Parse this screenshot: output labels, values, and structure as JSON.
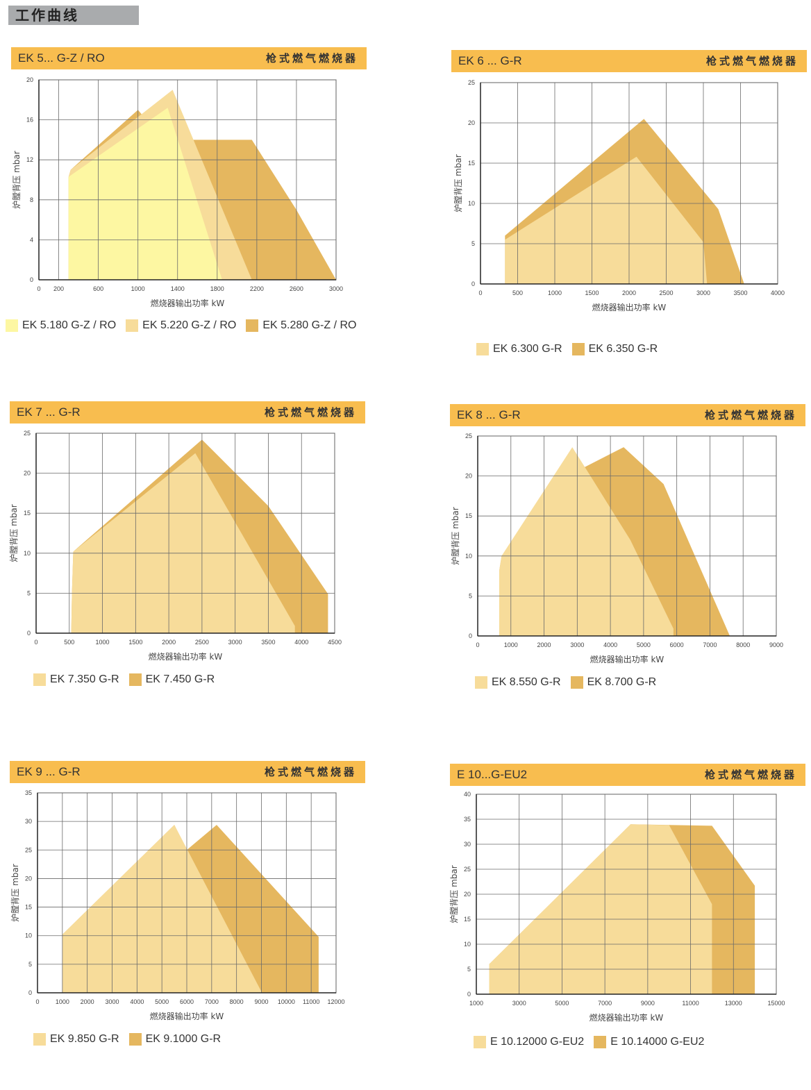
{
  "page_title": "工作曲线",
  "panel_subtitle": "枪式燃气燃烧器",
  "colors": {
    "light": "#fdf7a2",
    "mid": "#f7dc9a",
    "dark": "#e5b75f",
    "header": "#f8bd4f"
  },
  "chart_data": [
    {
      "type": "area",
      "title": "EK 5... G-Z / RO",
      "subtitle": "枪式燃气燃烧器",
      "xlabel": "燃烧器输出功率  kW",
      "ylabel": "炉膛背压  mbar",
      "xlim": [
        0,
        3000
      ],
      "ylim": [
        0,
        20
      ],
      "xticks": [
        0,
        200,
        600,
        1000,
        1400,
        1800,
        2200,
        2600,
        3000
      ],
      "yticks": [
        0,
        4,
        8,
        12,
        16,
        20
      ],
      "grid": true,
      "legend": "bottom",
      "series": [
        {
          "name": "EK 5.280 G-Z / RO",
          "color": "dark",
          "points": [
            [
              300,
              10.3
            ],
            [
              320,
              11
            ],
            [
              1000,
              17
            ],
            [
              1250,
              14
            ],
            [
              2150,
              14
            ],
            [
              2600,
              7
            ],
            [
              3000,
              0
            ],
            [
              300,
              0
            ]
          ]
        },
        {
          "name": "EK 5.220 G-Z / RO",
          "color": "mid",
          "points": [
            [
              300,
              10.3
            ],
            [
              320,
              11
            ],
            [
              1350,
              19
            ],
            [
              2150,
              0
            ],
            [
              300,
              0
            ]
          ]
        },
        {
          "name": "EK 5.180 G-Z / RO",
          "color": "light",
          "points": [
            [
              300,
              10.3
            ],
            [
              1300,
              17.2
            ],
            [
              1850,
              0
            ],
            [
              300,
              0
            ]
          ]
        }
      ],
      "legend_order": [
        2,
        1,
        0
      ]
    },
    {
      "type": "area",
      "title": "EK 6 ... G-R",
      "subtitle": "枪式燃气燃烧器",
      "xlabel": "燃烧器输出功率  kW",
      "ylabel": "炉膛背压  mbar",
      "xlim": [
        0,
        4000
      ],
      "ylim": [
        0,
        25
      ],
      "xticks": [
        0,
        500,
        1000,
        1500,
        2000,
        2500,
        3000,
        3500,
        4000
      ],
      "yticks": [
        0,
        5,
        10,
        15,
        20,
        25
      ],
      "grid": true,
      "legend": "bottom",
      "series": [
        {
          "name": "EK 6.350 G-R",
          "color": "dark",
          "points": [
            [
              330,
              0
            ],
            [
              330,
              6
            ],
            [
              2200,
              20.5
            ],
            [
              3200,
              9.3
            ],
            [
              3550,
              0
            ]
          ]
        },
        {
          "name": "EK 6.300 G-R",
          "color": "mid",
          "points": [
            [
              330,
              0
            ],
            [
              330,
              5.5
            ],
            [
              2100,
              15.8
            ],
            [
              3000,
              5.2
            ],
            [
              3050,
              0
            ]
          ]
        }
      ],
      "legend_order": [
        1,
        0
      ]
    },
    {
      "type": "area",
      "title": "EK 7 ... G-R",
      "subtitle": "枪式燃气燃烧器",
      "xlabel": "燃烧器输出功率  kW",
      "ylabel": "炉膛背压  mbar",
      "xlim": [
        0,
        4500
      ],
      "ylim": [
        0,
        25
      ],
      "xticks": [
        0,
        500,
        1000,
        1500,
        2000,
        2500,
        3000,
        3500,
        4000,
        4500
      ],
      "yticks": [
        0,
        5,
        10,
        15,
        20,
        25
      ],
      "grid": true,
      "legend": "bottom",
      "series": [
        {
          "name": "EK 7.450 G-R",
          "color": "dark",
          "points": [
            [
              530,
              0
            ],
            [
              540,
              5
            ],
            [
              560,
              10.2
            ],
            [
              2500,
              24.2
            ],
            [
              3500,
              15.9
            ],
            [
              4400,
              4.9
            ],
            [
              4400,
              0
            ]
          ]
        },
        {
          "name": "EK 7.350 G-R",
          "color": "mid",
          "points": [
            [
              530,
              0
            ],
            [
              540,
              5
            ],
            [
              560,
              10.2
            ],
            [
              2400,
              22.5
            ],
            [
              3900,
              0.9
            ],
            [
              3900,
              0
            ]
          ]
        }
      ],
      "legend_order": [
        1,
        0
      ]
    },
    {
      "type": "area",
      "title": "EK 8 ... G-R",
      "subtitle": "枪式燃气燃烧器",
      "xlabel": "燃烧器输出功率  kW",
      "ylabel": "炉膛背压  mbar",
      "xlim": [
        0,
        9000
      ],
      "ylim": [
        0,
        25
      ],
      "xticks": [
        0,
        1000,
        2000,
        3000,
        4000,
        5000,
        6000,
        7000,
        8000,
        9000
      ],
      "yticks": [
        0,
        5,
        10,
        15,
        20,
        25
      ],
      "grid": true,
      "legend": "bottom",
      "series": [
        {
          "name": "EK 8.700 G-R",
          "color": "dark",
          "points": [
            [
              650,
              0
            ],
            [
              650,
              8.2
            ],
            [
              720,
              10
            ],
            [
              2700,
              20
            ],
            [
              4400,
              23.6
            ],
            [
              5600,
              19
            ],
            [
              7600,
              0
            ]
          ]
        },
        {
          "name": "EK 8.550 G-R",
          "color": "mid",
          "points": [
            [
              650,
              0
            ],
            [
              650,
              8.2
            ],
            [
              720,
              10
            ],
            [
              2850,
              23.6
            ],
            [
              3400,
              20
            ],
            [
              4600,
              12
            ],
            [
              5900,
              0.9
            ],
            [
              5900,
              0
            ]
          ]
        }
      ],
      "legend_order": [
        1,
        0
      ]
    },
    {
      "type": "area",
      "title": "EK 9 ... G-R",
      "subtitle": "枪式燃气燃烧器",
      "xlabel": "燃烧器输出功率  kW",
      "ylabel": "炉膛背压  mbar",
      "xlim": [
        0,
        12000
      ],
      "ylim": [
        0,
        35
      ],
      "xticks": [
        0,
        1000,
        2000,
        3000,
        4000,
        5000,
        6000,
        7000,
        8000,
        9000,
        10000,
        11000,
        12000
      ],
      "yticks": [
        0,
        5,
        10,
        15,
        20,
        25,
        30,
        35
      ],
      "grid": true,
      "legend": "bottom",
      "series": [
        {
          "name": "EK 9.1000 G-R",
          "color": "dark",
          "points": [
            [
              1000,
              0
            ],
            [
              1000,
              10.2
            ],
            [
              5500,
              29.4
            ],
            [
              6000,
              25
            ],
            [
              7200,
              29.4
            ],
            [
              11300,
              9.8
            ],
            [
              11300,
              0
            ]
          ]
        },
        {
          "name": "EK 9.850 G-R",
          "color": "mid",
          "points": [
            [
              1000,
              0
            ],
            [
              1000,
              10.2
            ],
            [
              5500,
              29.4
            ],
            [
              9000,
              0.2
            ],
            [
              9000,
              0
            ]
          ]
        }
      ],
      "legend_order": [
        1,
        0
      ]
    },
    {
      "type": "area",
      "title": "E 10...G-EU2",
      "subtitle": "枪式燃气燃烧器",
      "xlabel": "燃烧器输出功率  kW",
      "ylabel": "炉膛背压  mbar",
      "xlim": [
        1000,
        15000
      ],
      "ylim": [
        0,
        40
      ],
      "xticks": [
        1000,
        3000,
        5000,
        7000,
        9000,
        11000,
        13000,
        15000
      ],
      "yticks": [
        0,
        5,
        10,
        15,
        20,
        25,
        30,
        35,
        40
      ],
      "grid": true,
      "legend": "bottom",
      "series": [
        {
          "name": "E 10.14000 G-EU2",
          "color": "dark",
          "points": [
            [
              1600,
              0
            ],
            [
              1600,
              6
            ],
            [
              8200,
              34
            ],
            [
              12000,
              33.7
            ],
            [
              14000,
              21.7
            ],
            [
              14000,
              0
            ]
          ]
        },
        {
          "name": "E 10.12000 G-EU2",
          "color": "mid",
          "points": [
            [
              1600,
              0
            ],
            [
              1600,
              6
            ],
            [
              8200,
              34
            ],
            [
              10000,
              33.8
            ],
            [
              12000,
              18
            ],
            [
              12000,
              0
            ]
          ]
        }
      ],
      "legend_order": [
        1,
        0
      ]
    }
  ]
}
